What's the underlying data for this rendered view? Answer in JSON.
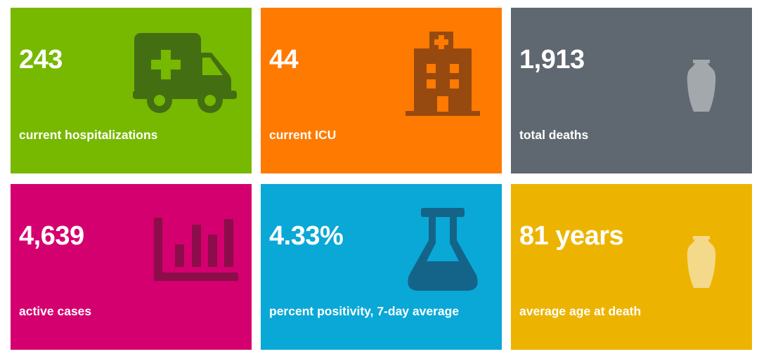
{
  "cards": [
    {
      "value": "243",
      "label": "current hospitalizations",
      "bg": "#77b800",
      "icon": "ambulance-icon",
      "icon_color": "#446e12"
    },
    {
      "value": "44",
      "label": "current ICU",
      "bg": "#ff7a00",
      "icon": "hospital-building-icon",
      "icon_color": "#974a10"
    },
    {
      "value": "1,913",
      "label": "total deaths",
      "bg": "#5f6870",
      "icon": "urn-icon",
      "icon_color": "#a3a8ac"
    },
    {
      "value": "4,639",
      "label": "active cases",
      "bg": "#d4006f",
      "icon": "bar-chart-icon",
      "icon_color": "#8c0d4a"
    },
    {
      "value": "4.33%",
      "label": "percent positivity, 7-day average",
      "bg": "#0aa8d6",
      "icon": "flask-icon",
      "icon_color": "#14648a"
    },
    {
      "value": "81 years",
      "label": "average age at death",
      "bg": "#ecb400",
      "icon": "urn-icon",
      "icon_color": "#f5d98a"
    }
  ]
}
